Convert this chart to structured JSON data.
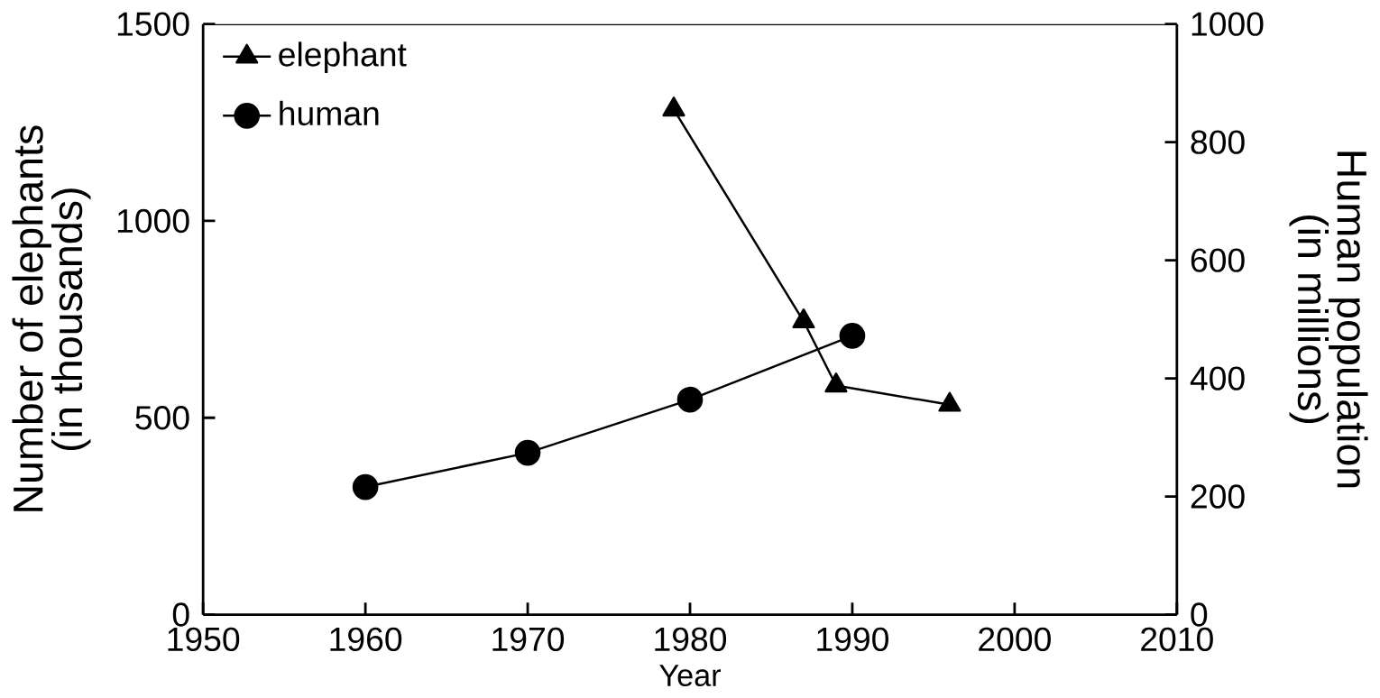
{
  "chart_data": {
    "type": "line",
    "xlabel": "Year",
    "ylabel": "Number of elephants\n(in thousands)",
    "y2label": "Human population\n(in millions)",
    "xlim": [
      1950,
      2010
    ],
    "xticks": [
      1950,
      1960,
      1970,
      1980,
      1990,
      2000,
      2010
    ],
    "ylim": [
      0,
      1500
    ],
    "yticks": [
      0,
      500,
      1000,
      1500
    ],
    "y2lim": [
      0,
      1000
    ],
    "y2ticks": [
      0,
      200,
      400,
      600,
      800,
      1000
    ],
    "legend": "top left",
    "grid": false,
    "series": [
      {
        "name": "human",
        "color": "#000000",
        "marker": "circle",
        "axis": "y2",
        "x": [
          1960,
          1970,
          1980,
          1990
        ],
        "values": [
          216,
          274,
          364,
          472
        ]
      },
      {
        "name": "elephant",
        "color": "#000000",
        "marker": "triangle",
        "x": [
          1979,
          1987,
          1989,
          1996
        ],
        "values": [
          1283,
          745,
          582,
          533
        ]
      }
    ]
  }
}
